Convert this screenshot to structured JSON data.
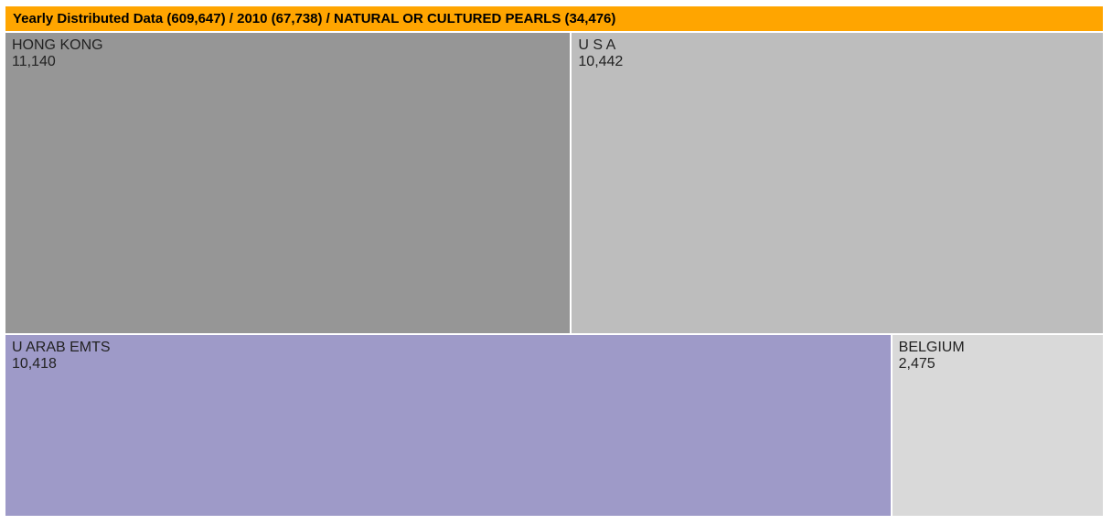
{
  "chart_data": {
    "type": "treemap",
    "breadcrumb": {
      "text": "Yearly Distributed Data (609,647) / 2010 (67,738) / NATURAL OR CULTURED PEARLS (34,476)",
      "color": "#FFA500"
    },
    "nodes": [
      {
        "name": "HONG KONG",
        "value": 11140,
        "value_label": "11,140",
        "color": "#969696"
      },
      {
        "name": "U S A",
        "value": 10442,
        "value_label": "10,442",
        "color": "#BDBDBD"
      },
      {
        "name": "U ARAB EMTS",
        "value": 10418,
        "value_label": "10,418",
        "color": "#9E9AC8"
      },
      {
        "name": "BELGIUM",
        "value": 2475,
        "value_label": "2,475",
        "color": "#D9D9D9"
      }
    ]
  }
}
